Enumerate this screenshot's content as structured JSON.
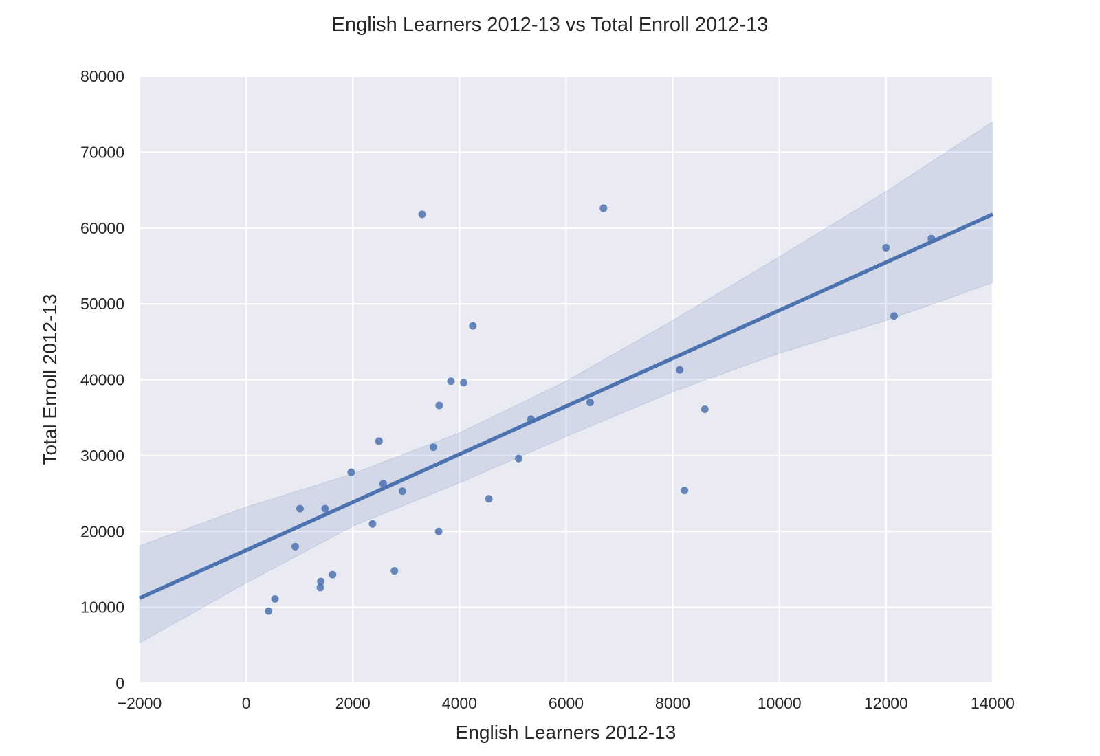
{
  "chart_data": {
    "type": "scatter",
    "title": "English Learners 2012-13 vs Total Enroll 2012-13",
    "xlabel": "English Learners 2012-13",
    "ylabel": "Total Enroll 2012-13",
    "xlim": [
      -2000,
      14000
    ],
    "ylim": [
      0,
      80000
    ],
    "xticks": [
      -2000,
      0,
      2000,
      4000,
      6000,
      8000,
      10000,
      12000,
      14000
    ],
    "yticks": [
      0,
      10000,
      20000,
      30000,
      40000,
      50000,
      60000,
      70000,
      80000
    ],
    "xtick_labels": [
      "−2000",
      "0",
      "2000",
      "4000",
      "6000",
      "8000",
      "10000",
      "12000",
      "14000"
    ],
    "ytick_labels": [
      "0",
      "10000",
      "20000",
      "30000",
      "40000",
      "50000",
      "60000",
      "70000",
      "80000"
    ],
    "grid": true,
    "colors": {
      "background": "#EAEAF2",
      "grid": "#FFFFFF",
      "points": "#4C72B0",
      "line": "#4C72B0",
      "band": "#4C72B0"
    },
    "points": [
      {
        "x": 420,
        "y": 9500
      },
      {
        "x": 540,
        "y": 11100
      },
      {
        "x": 920,
        "y": 18000
      },
      {
        "x": 1010,
        "y": 23000
      },
      {
        "x": 1390,
        "y": 12600
      },
      {
        "x": 1400,
        "y": 13400
      },
      {
        "x": 1480,
        "y": 23000
      },
      {
        "x": 1620,
        "y": 14300
      },
      {
        "x": 1970,
        "y": 27800
      },
      {
        "x": 2370,
        "y": 21000
      },
      {
        "x": 2490,
        "y": 31900
      },
      {
        "x": 2570,
        "y": 26300
      },
      {
        "x": 2780,
        "y": 14800
      },
      {
        "x": 2930,
        "y": 25300
      },
      {
        "x": 3300,
        "y": 61800
      },
      {
        "x": 3510,
        "y": 31100
      },
      {
        "x": 3610,
        "y": 20000
      },
      {
        "x": 3620,
        "y": 36600
      },
      {
        "x": 3840,
        "y": 39800
      },
      {
        "x": 4080,
        "y": 39600
      },
      {
        "x": 4250,
        "y": 47100
      },
      {
        "x": 4550,
        "y": 24300
      },
      {
        "x": 5110,
        "y": 29600
      },
      {
        "x": 5340,
        "y": 34800
      },
      {
        "x": 6450,
        "y": 37000
      },
      {
        "x": 6700,
        "y": 62600
      },
      {
        "x": 8130,
        "y": 41300
      },
      {
        "x": 8220,
        "y": 25400
      },
      {
        "x": 8600,
        "y": 36100
      },
      {
        "x": 12000,
        "y": 57400
      },
      {
        "x": 12150,
        "y": 48400
      },
      {
        "x": 12850,
        "y": 58600
      }
    ],
    "regression": {
      "x": [
        -2000,
        14000
      ],
      "y": [
        11200,
        61800
      ]
    },
    "confidence_band": {
      "x": [
        -2000,
        0,
        2000,
        4000,
        6000,
        8000,
        10000,
        12000,
        14000
      ],
      "upper": [
        18100,
        23200,
        27600,
        33000,
        39800,
        47800,
        56200,
        64800,
        74000
      ],
      "lower": [
        5300,
        13200,
        20700,
        26400,
        32500,
        38400,
        43500,
        47800,
        52800
      ]
    }
  }
}
